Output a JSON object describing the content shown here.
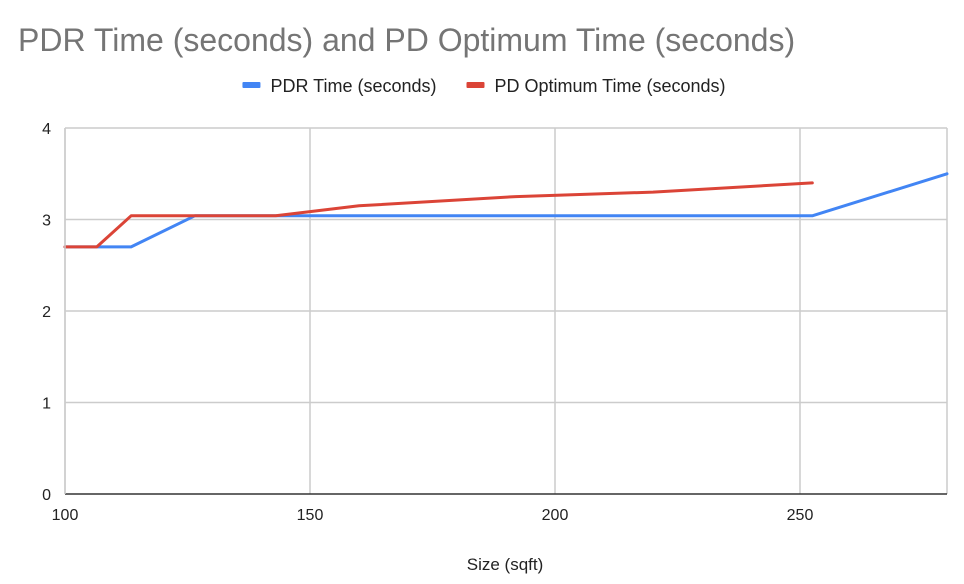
{
  "chart_data": {
    "type": "line",
    "title": "PDR Time (seconds) and PD Optimum Time (seconds)",
    "xlabel": "Size (sqft)",
    "ylabel": "",
    "xlim": [
      100,
      280
    ],
    "ylim": [
      0,
      4
    ],
    "x_ticks": [
      100,
      150,
      200,
      250
    ],
    "y_ticks": [
      0,
      1,
      2,
      3,
      4
    ],
    "grid": true,
    "legend_position": "top",
    "series": [
      {
        "name": "PDR Time (seconds)",
        "color": "#4285f4",
        "points": [
          [
            100,
            2.7
          ],
          [
            106.5,
            2.7
          ],
          [
            113.5,
            2.7
          ],
          [
            126.5,
            3.04
          ],
          [
            143,
            3.04
          ],
          [
            200,
            3.04
          ],
          [
            252.5,
            3.04
          ],
          [
            280,
            3.5
          ]
        ]
      },
      {
        "name": "PD Optimum Time (seconds)",
        "color": "#db4437",
        "points": [
          [
            100,
            2.7
          ],
          [
            106.5,
            2.7
          ],
          [
            113.5,
            3.04
          ],
          [
            126.5,
            3.04
          ],
          [
            143,
            3.04
          ],
          [
            160,
            3.15
          ],
          [
            192,
            3.25
          ],
          [
            220,
            3.3
          ],
          [
            252.5,
            3.4
          ]
        ]
      }
    ]
  }
}
